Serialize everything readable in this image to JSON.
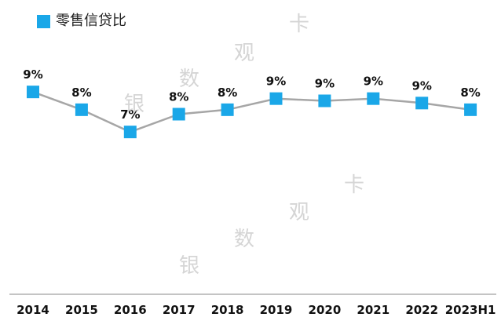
{
  "legend": {
    "label": "零售信贷比",
    "color": "#1aa7e8"
  },
  "watermark": [
    "银",
    "数",
    "观",
    "卡"
  ],
  "colors": {
    "marker": "#1aa7e8",
    "line": "#a6a6a6",
    "label": "#111111",
    "axis": "#888888"
  },
  "chart_data": {
    "type": "line",
    "categories": [
      "2014",
      "2015",
      "2016",
      "2017",
      "2018",
      "2019",
      "2020",
      "2021",
      "2022",
      "2023H1"
    ],
    "series": [
      {
        "name": "零售信贷比",
        "values": [
          0.091,
          0.083,
          0.073,
          0.081,
          0.083,
          0.088,
          0.087,
          0.088,
          0.086,
          0.083
        ],
        "labels": [
          "9%",
          "8%",
          "7%",
          "8%",
          "8%",
          "9%",
          "9%",
          "9%",
          "9%",
          "8%"
        ]
      }
    ],
    "xlabel": "",
    "ylabel": "",
    "ylim": [
      0,
      0.12
    ],
    "grid": false,
    "legend_position": "top-left"
  }
}
